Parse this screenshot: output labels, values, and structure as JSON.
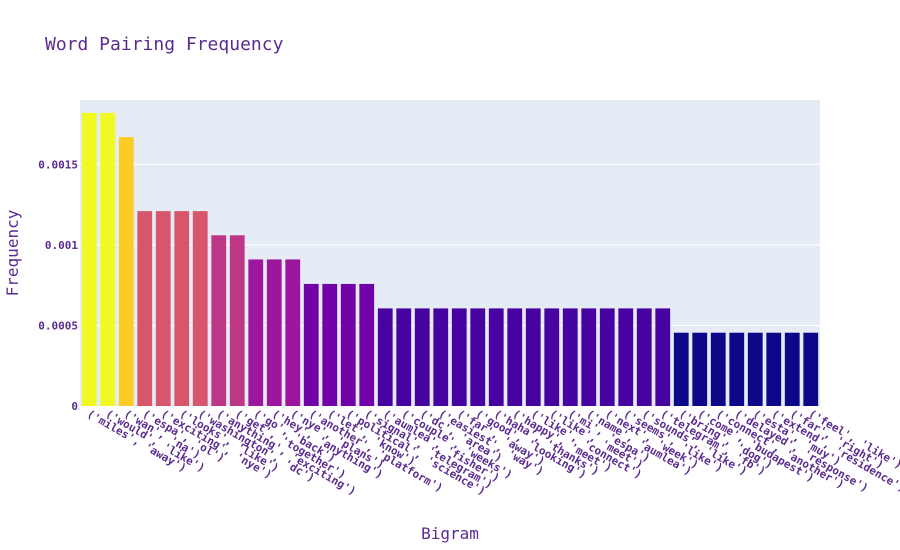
{
  "chart_data": {
    "type": "bar",
    "title": "Word Pairing Frequency",
    "xlabel": "Bigram",
    "ylabel": "Frequency",
    "ylim": [
      0,
      0.0019
    ],
    "yticks": [
      {
        "value": 0,
        "label": "0"
      },
      {
        "value": 0.0005,
        "label": "0.0005"
      },
      {
        "value": 0.001,
        "label": "0.001"
      },
      {
        "value": 0.0015,
        "label": "0.0015"
      }
    ],
    "grid": true,
    "colorscale": "plasma",
    "categories": [
      "('miles', 'away')",
      "('would', 'like')",
      "('wan', 'na')",
      "('espa', 'ol')",
      "('exciting', 'nye')",
      "('looks', 'like')",
      "('washington', 'dc')",
      "('anything', 'exciting')",
      "('get', 'together')",
      "('go', 'back')",
      "('hey', 'anything')",
      "('nye', 'plans')",
      "('another', 'platform')",
      "('let', 'know')",
      "('political', 'science')",
      "('signal', 'telegram')",
      "('aumlea', 'fisher')",
      "('couple', 'weeks')",
      "('dc', 'area')",
      "('easiest', 'way')",
      "('far', 'away')",
      "('good', 'looking')",
      "('haha', 'thanks')",
      "('happy', 'meet')",
      "('like', 'connect')",
      "('like', 'meet')",
      "('mi', 'espa')",
      "('name', 'aumlea')",
      "('next', 'week')",
      "('seems', 'like')",
      "('sounds', 'like')",
      "('telegram', 'fb')",
      "('bring', 'dog')",
      "('come', 'budapest')",
      "('connect', 'another')",
      "('delayed', 'response')",
      "('esta', 'muy')",
      "('extend', 'residence')",
      "('far', 'right')",
      "('feel', 'like')"
    ],
    "values": [
      0.00182,
      0.00182,
      0.00167,
      0.00121,
      0.00121,
      0.00121,
      0.00121,
      0.00106,
      0.00106,
      0.00091,
      0.00091,
      0.00091,
      0.000758,
      0.000758,
      0.000758,
      0.000758,
      0.000606,
      0.000606,
      0.000606,
      0.000606,
      0.000606,
      0.000606,
      0.000606,
      0.000606,
      0.000606,
      0.000606,
      0.000606,
      0.000606,
      0.000606,
      0.000606,
      0.000606,
      0.000606,
      0.000455,
      0.000455,
      0.000455,
      0.000455,
      0.000455,
      0.000455,
      0.000455,
      0.000455
    ],
    "colors": {
      "plot_bg": "#e5ecf6",
      "grid": "#ffffff",
      "text": "#5b2c8f"
    }
  }
}
